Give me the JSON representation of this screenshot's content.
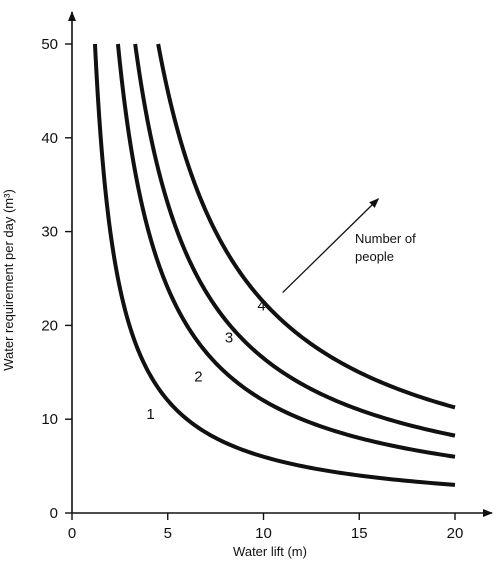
{
  "chart_data": {
    "type": "line",
    "xlabel": "Water lift (m)",
    "ylabel": "Water requirement per day (m³)",
    "xlim": [
      0,
      20
    ],
    "ylim": [
      0,
      50
    ],
    "x_ticks": [
      "0",
      "5",
      "10",
      "15",
      "20"
    ],
    "y_ticks": [
      "0",
      "10",
      "20",
      "30",
      "40",
      "50"
    ],
    "grid": false,
    "series": [
      {
        "name": "1",
        "k": 60,
        "x": [
          1.2,
          1.5,
          2,
          3,
          4,
          5,
          6,
          8,
          10,
          12,
          15,
          18,
          20
        ],
        "y": [
          50,
          40,
          30,
          20,
          15,
          12,
          10,
          7.5,
          6,
          5,
          4,
          3.3,
          3
        ]
      },
      {
        "name": "2",
        "k": 120,
        "x": [
          2.4,
          3,
          4,
          5,
          6,
          8,
          10,
          12,
          15,
          18,
          20
        ],
        "y": [
          50,
          40,
          30,
          24,
          20,
          15,
          12,
          10,
          8,
          6.7,
          6
        ]
      },
      {
        "name": "3",
        "k": 165,
        "x": [
          3.3,
          4,
          5,
          6,
          8,
          10,
          12,
          15,
          18,
          20
        ],
        "y": [
          50,
          41,
          33,
          27.5,
          20.6,
          16.5,
          13.8,
          11,
          9.2,
          8.3
        ]
      },
      {
        "name": "4",
        "k": 225,
        "x": [
          4.5,
          5,
          6,
          8,
          10,
          12,
          15,
          18,
          20
        ],
        "y": [
          50,
          45,
          37.5,
          28,
          22.5,
          18.8,
          15,
          12.5,
          11.3
        ]
      }
    ],
    "annotation": {
      "text_line1": "Number of",
      "text_line2": "people",
      "arrow_from": [
        11,
        23.5
      ],
      "arrow_to": [
        16,
        33.5
      ]
    }
  }
}
